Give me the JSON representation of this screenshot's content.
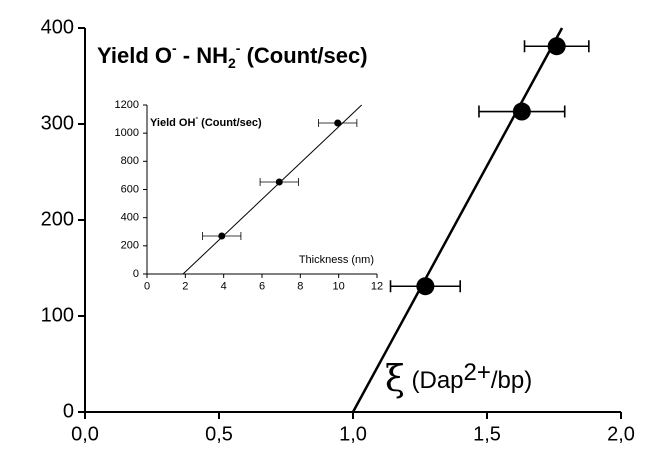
{
  "chart_data": [
    {
      "type": "scatter",
      "title_parts": [
        "Yield O",
        "-",
        " - NH",
        "2",
        "-",
        " (Count/sec)"
      ],
      "annotation_parts": [
        "ξ",
        " (Dap",
        "2+",
        "/bp)"
      ],
      "x": [
        1.27,
        1.63,
        1.76
      ],
      "values": [
        131,
        313,
        381
      ],
      "xerr": [
        0.13,
        0.16,
        0.12
      ],
      "fit": {
        "x": [
          1.0,
          1.78
        ],
        "y": [
          0,
          400
        ]
      },
      "xlim": [
        0,
        2
      ],
      "ylim": [
        0,
        400
      ],
      "xticks": [
        {
          "value": 0,
          "label": "0,0"
        },
        {
          "value": 0.5,
          "label": "0,5"
        },
        {
          "value": 1,
          "label": "1,0"
        },
        {
          "value": 1.5,
          "label": "1,5"
        },
        {
          "value": 2,
          "label": "2,0"
        }
      ],
      "yticks": [
        0,
        100,
        200,
        300,
        400
      ],
      "color": "#000000"
    },
    {
      "type": "scatter",
      "title_parts": [
        "Yield OH",
        "-",
        " (Count/sec)"
      ],
      "xlabel": "Thickness (nm)",
      "x": [
        3.9,
        6.9,
        9.95
      ],
      "values": [
        270,
        653,
        1072
      ],
      "xerr": [
        1.0,
        1.0,
        1.0
      ],
      "fit": {
        "x": [
          1.88,
          11.2
        ],
        "y": [
          0,
          1200
        ]
      },
      "xlim": [
        0,
        12
      ],
      "ylim": [
        0,
        1200
      ],
      "xticks": [
        0,
        2,
        4,
        6,
        8,
        10,
        12
      ],
      "yticks": [
        0,
        200,
        400,
        600,
        800,
        1000,
        1200
      ],
      "color": "#000000"
    }
  ]
}
